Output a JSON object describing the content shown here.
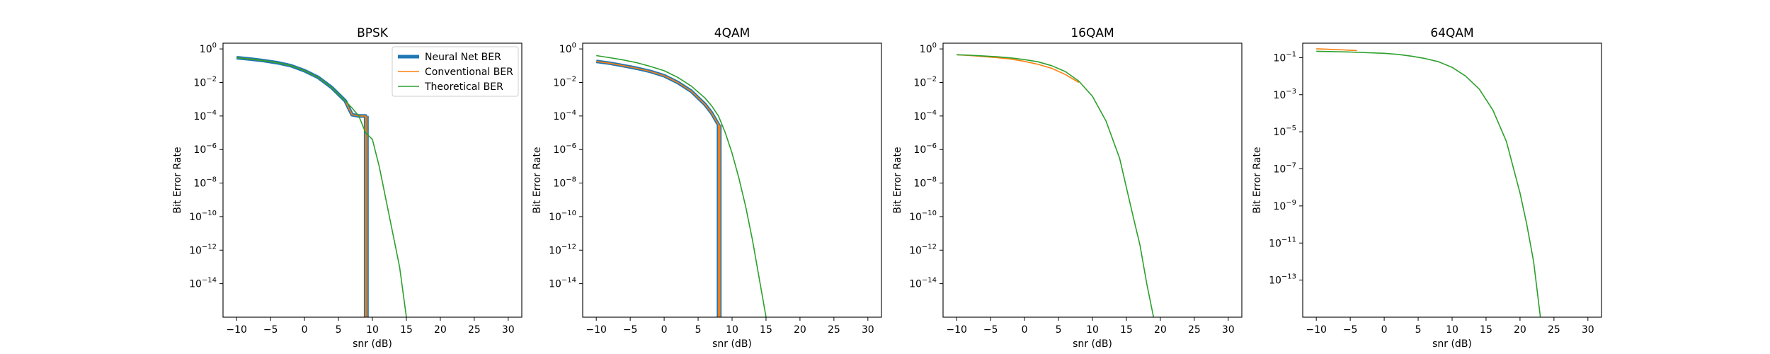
{
  "colors": {
    "neural": "#1f77b4",
    "conventional": "#ff7f0e",
    "theoretical": "#2ca02c"
  },
  "legend": {
    "entries": [
      "Neural Net BER",
      "Conventional BER",
      "Theoretical BER"
    ],
    "placement": "upper-right of first panel"
  },
  "chart_data": [
    {
      "type": "line",
      "title": "BPSK",
      "xlabel": "snr (dB)",
      "ylabel": "Bit Error Rate",
      "yscale": "log",
      "xlim": [
        -12,
        32
      ],
      "ylim": [
        1e-16,
        2.2
      ],
      "xticks": [
        -10,
        -5,
        0,
        5,
        10,
        15,
        20,
        25,
        30
      ],
      "yticks": [
        {
          "value": 1,
          "base": "10",
          "exp": "0"
        },
        {
          "value": 0.01,
          "base": "10",
          "exp": "−2"
        },
        {
          "value": 0.0001,
          "base": "10",
          "exp": "−4"
        },
        {
          "value": 1e-06,
          "base": "10",
          "exp": "−6"
        },
        {
          "value": 1e-08,
          "base": "10",
          "exp": "−8"
        },
        {
          "value": 1e-10,
          "base": "10",
          "exp": "−10"
        },
        {
          "value": 1e-12,
          "base": "10",
          "exp": "−12"
        },
        {
          "value": 1e-14,
          "base": "10",
          "exp": "−14"
        }
      ],
      "show_legend": true,
      "series": [
        {
          "name": "Neural Net BER",
          "color": "#1f77b4",
          "width": 5,
          "x": [
            -10,
            -8,
            -6,
            -4,
            -2,
            0,
            2,
            4,
            6,
            7,
            8,
            9,
            9,
            9.2,
            9.2
          ],
          "y": [
            0.3,
            0.25,
            0.2,
            0.15,
            0.1,
            0.05,
            0.02,
            0.005,
            0.0008,
            0.00012,
            0.0001,
            0.0001,
            1e-16,
            1e-16,
            0.0001
          ]
        },
        {
          "name": "Conventional BER",
          "color": "#ff7f0e",
          "width": 1.6,
          "x": [
            -10,
            -8,
            -6,
            -4,
            -2,
            0,
            2,
            4,
            6,
            7,
            8,
            9,
            9,
            9.2,
            9.2
          ],
          "y": [
            0.3,
            0.25,
            0.2,
            0.15,
            0.1,
            0.05,
            0.02,
            0.005,
            0.0008,
            0.00012,
            0.0001,
            0.0001,
            1e-16,
            1e-16,
            0.0001
          ]
        },
        {
          "name": "Theoretical BER",
          "color": "#2ca02c",
          "width": 1.6,
          "x": [
            -10,
            -8,
            -6,
            -4,
            -2,
            0,
            2,
            4,
            6,
            7,
            8,
            9,
            10,
            11,
            12,
            13,
            14,
            15
          ],
          "y": [
            0.3,
            0.25,
            0.2,
            0.15,
            0.1,
            0.05,
            0.02,
            0.005,
            0.0008,
            0.0003,
            0.0001,
            1e-05,
            4e-06,
            1e-07,
            1e-09,
            1e-11,
            1e-13,
            1e-16
          ]
        }
      ]
    },
    {
      "type": "line",
      "title": "4QAM",
      "xlabel": "snr (dB)",
      "ylabel": "Bit Error Rate",
      "yscale": "log",
      "xlim": [
        -12,
        32
      ],
      "ylim": [
        1e-16,
        2.2
      ],
      "xticks": [
        -10,
        -5,
        0,
        5,
        10,
        15,
        20,
        25,
        30
      ],
      "yticks": [
        {
          "value": 1,
          "base": "10",
          "exp": "0"
        },
        {
          "value": 0.01,
          "base": "10",
          "exp": "−2"
        },
        {
          "value": 0.0001,
          "base": "10",
          "exp": "−4"
        },
        {
          "value": 1e-06,
          "base": "10",
          "exp": "−6"
        },
        {
          "value": 1e-08,
          "base": "10",
          "exp": "−8"
        },
        {
          "value": 1e-10,
          "base": "10",
          "exp": "−10"
        },
        {
          "value": 1e-12,
          "base": "10",
          "exp": "−12"
        },
        {
          "value": 1e-14,
          "base": "10",
          "exp": "−14"
        }
      ],
      "show_legend": false,
      "series": [
        {
          "name": "Neural Net BER",
          "color": "#1f77b4",
          "width": 5,
          "x": [
            -10,
            -8,
            -6,
            -4,
            -2,
            0,
            2,
            4,
            6,
            7,
            8,
            8,
            8.2,
            8.2
          ],
          "y": [
            0.18,
            0.14,
            0.1,
            0.07,
            0.045,
            0.025,
            0.01,
            0.003,
            0.0005,
            0.00015,
            3e-05,
            1e-16,
            1e-16,
            3e-05
          ]
        },
        {
          "name": "Conventional BER",
          "color": "#ff7f0e",
          "width": 1.6,
          "x": [
            -10,
            -8,
            -6,
            -4,
            -2,
            0,
            2,
            4,
            6,
            7,
            8,
            8,
            8.2,
            8.2
          ],
          "y": [
            0.18,
            0.14,
            0.1,
            0.07,
            0.045,
            0.025,
            0.01,
            0.003,
            0.0005,
            0.00015,
            3e-05,
            1e-16,
            1e-16,
            3e-05
          ]
        },
        {
          "name": "Theoretical BER",
          "color": "#2ca02c",
          "width": 1.6,
          "x": [
            -10,
            -8,
            -6,
            -4,
            -2,
            0,
            2,
            4,
            6,
            7,
            8,
            9,
            10,
            11,
            12,
            13,
            14,
            15
          ],
          "y": [
            0.4,
            0.3,
            0.22,
            0.15,
            0.09,
            0.05,
            0.02,
            0.006,
            0.0012,
            0.0004,
            0.0001,
            1e-05,
            6e-07,
            2e-08,
            4e-10,
            4e-12,
            2e-14,
            1e-16
          ]
        }
      ]
    },
    {
      "type": "line",
      "title": "16QAM",
      "xlabel": "snr (dB)",
      "ylabel": "Bit Error Rate",
      "yscale": "log",
      "xlim": [
        -12,
        32
      ],
      "ylim": [
        1e-16,
        2.2
      ],
      "xticks": [
        -10,
        -5,
        0,
        5,
        10,
        15,
        20,
        25,
        30
      ],
      "yticks": [
        {
          "value": 1,
          "base": "10",
          "exp": "0"
        },
        {
          "value": 0.01,
          "base": "10",
          "exp": "−2"
        },
        {
          "value": 0.0001,
          "base": "10",
          "exp": "−4"
        },
        {
          "value": 1e-06,
          "base": "10",
          "exp": "−6"
        },
        {
          "value": 1e-08,
          "base": "10",
          "exp": "−8"
        },
        {
          "value": 1e-10,
          "base": "10",
          "exp": "−10"
        },
        {
          "value": 1e-12,
          "base": "10",
          "exp": "−12"
        },
        {
          "value": 1e-14,
          "base": "10",
          "exp": "−14"
        }
      ],
      "show_legend": false,
      "series": [
        {
          "name": "Neural Net BER",
          "color": "#1f77b4",
          "width": 5,
          "x": [],
          "y": []
        },
        {
          "name": "Conventional BER",
          "color": "#ff7f0e",
          "width": 1.6,
          "x": [
            -10,
            -8,
            -6,
            -4,
            -2,
            0,
            2,
            4,
            6,
            8
          ],
          "y": [
            0.45,
            0.4,
            0.35,
            0.3,
            0.25,
            0.18,
            0.12,
            0.07,
            0.03,
            0.01
          ]
        },
        {
          "name": "Theoretical BER",
          "color": "#2ca02c",
          "width": 1.6,
          "x": [
            -10,
            -8,
            -6,
            -4,
            -2,
            0,
            2,
            4,
            6,
            8,
            10,
            12,
            14,
            16,
            17,
            18,
            19
          ],
          "y": [
            0.45,
            0.42,
            0.38,
            0.34,
            0.29,
            0.23,
            0.17,
            0.1,
            0.045,
            0.012,
            0.0015,
            5e-05,
            3e-07,
            1e-10,
            2e-12,
            1e-14,
            1e-16
          ]
        }
      ]
    },
    {
      "type": "line",
      "title": "64QAM",
      "xlabel": "snr (dB)",
      "ylabel": "Bit Error Rate",
      "yscale": "log",
      "xlim": [
        -12,
        32
      ],
      "ylim": [
        1e-15,
        0.6
      ],
      "xticks": [
        -10,
        -5,
        0,
        5,
        10,
        15,
        20,
        25,
        30
      ],
      "yticks": [
        {
          "value": 0.1,
          "base": "10",
          "exp": "−1"
        },
        {
          "value": 0.001,
          "base": "10",
          "exp": "−3"
        },
        {
          "value": 1e-05,
          "base": "10",
          "exp": "−5"
        },
        {
          "value": 1e-07,
          "base": "10",
          "exp": "−7"
        },
        {
          "value": 1e-09,
          "base": "10",
          "exp": "−9"
        },
        {
          "value": 1e-11,
          "base": "10",
          "exp": "−11"
        },
        {
          "value": 1e-13,
          "base": "10",
          "exp": "−13"
        }
      ],
      "show_legend": false,
      "series": [
        {
          "name": "Neural Net BER",
          "color": "#1f77b4",
          "width": 5,
          "x": [],
          "y": []
        },
        {
          "name": "Conventional BER",
          "color": "#ff7f0e",
          "width": 1.6,
          "x": [
            -10,
            -8,
            -6,
            -4
          ],
          "y": [
            0.3,
            0.28,
            0.26,
            0.24
          ]
        },
        {
          "name": "Theoretical BER",
          "color": "#2ca02c",
          "width": 1.6,
          "x": [
            -10,
            -5,
            0,
            2,
            4,
            6,
            8,
            10,
            12,
            14,
            16,
            18,
            20,
            21,
            22,
            23
          ],
          "y": [
            0.22,
            0.2,
            0.17,
            0.15,
            0.12,
            0.09,
            0.06,
            0.03,
            0.01,
            0.002,
            0.00015,
            3e-06,
            5e-09,
            1e-10,
            1e-12,
            1e-15
          ]
        }
      ]
    }
  ]
}
